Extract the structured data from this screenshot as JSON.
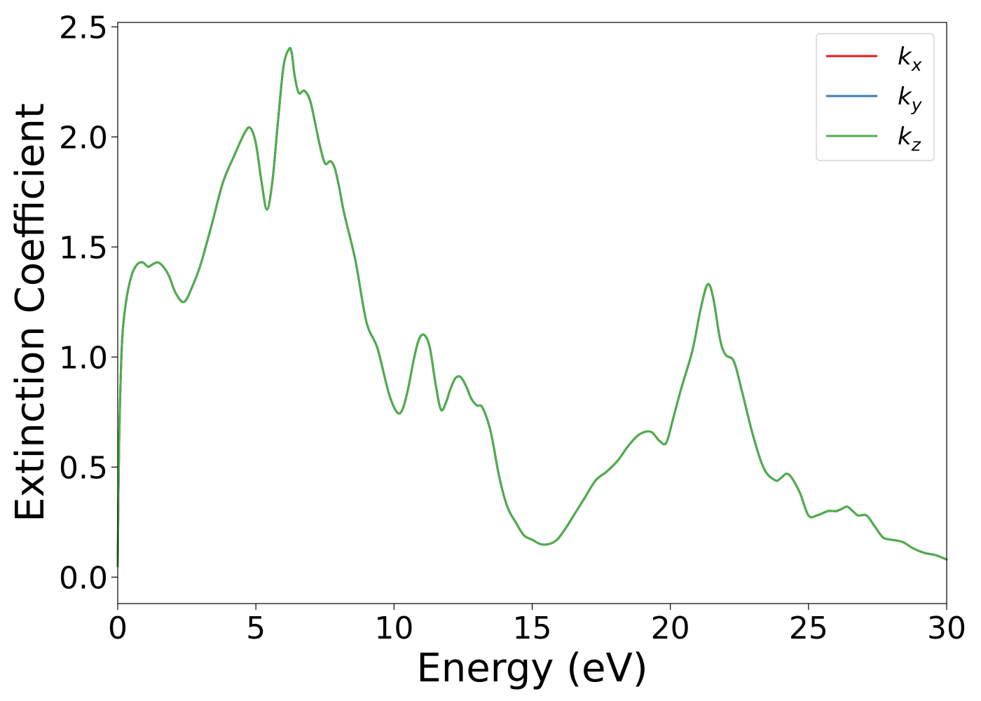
{
  "chart_data": {
    "type": "line",
    "xlabel": "Energy (eV)",
    "ylabel": "Extinction Coefficient",
    "xlim": [
      0,
      30
    ],
    "ylim": [
      -0.12,
      2.52
    ],
    "xticks": [
      0,
      5,
      10,
      15,
      20,
      25,
      30
    ],
    "yticks": [
      0.0,
      0.5,
      1.0,
      1.5,
      2.0,
      2.5
    ],
    "xtick_labels": [
      "0",
      "5",
      "10",
      "15",
      "20",
      "25",
      "30"
    ],
    "ytick_labels": [
      "0.0",
      "0.5",
      "1.0",
      "1.5",
      "2.0",
      "2.5"
    ],
    "grid": false,
    "legend_position": "top-right",
    "x": [
      0,
      0.05,
      0.15,
      0.3,
      0.5,
      0.7,
      0.9,
      1.1,
      1.25,
      1.45,
      1.65,
      1.85,
      2.1,
      2.4,
      2.7,
      3.0,
      3.4,
      3.8,
      4.2,
      4.6,
      4.8,
      5.0,
      5.2,
      5.4,
      5.6,
      5.8,
      6.0,
      6.2,
      6.3,
      6.4,
      6.55,
      6.75,
      6.95,
      7.1,
      7.3,
      7.5,
      7.7,
      7.85,
      8.0,
      8.2,
      8.6,
      9.0,
      9.4,
      9.8,
      10.1,
      10.3,
      10.5,
      10.7,
      10.9,
      11.1,
      11.3,
      11.5,
      11.7,
      11.9,
      12.0,
      12.2,
      12.4,
      12.6,
      12.8,
      13.0,
      13.2,
      13.5,
      13.8,
      14.1,
      14.4,
      14.7,
      15.0,
      15.3,
      15.6,
      15.9,
      16.2,
      16.5,
      16.9,
      17.3,
      17.7,
      18.1,
      18.5,
      18.9,
      19.3,
      19.6,
      19.85,
      20.1,
      20.4,
      20.8,
      21.1,
      21.35,
      21.55,
      21.8,
      22.0,
      22.3,
      22.6,
      23.0,
      23.4,
      23.8,
      24.0,
      24.2,
      24.4,
      24.7,
      25.0,
      25.3,
      25.7,
      26.0,
      26.2,
      26.4,
      26.6,
      26.8,
      27.1,
      27.4,
      27.7,
      28.0,
      28.4,
      28.8,
      29.2,
      29.6,
      30.0
    ],
    "series": [
      {
        "name": "k_x",
        "color": "#e41a1c",
        "values": [
          0.05,
          0.6,
          1.05,
          1.25,
          1.37,
          1.42,
          1.43,
          1.41,
          1.42,
          1.43,
          1.41,
          1.37,
          1.29,
          1.25,
          1.32,
          1.42,
          1.6,
          1.79,
          1.91,
          2.02,
          2.04,
          1.97,
          1.8,
          1.67,
          1.8,
          2.07,
          2.32,
          2.4,
          2.38,
          2.28,
          2.2,
          2.21,
          2.17,
          2.09,
          1.97,
          1.88,
          1.89,
          1.86,
          1.78,
          1.65,
          1.44,
          1.16,
          1.04,
          0.84,
          0.75,
          0.76,
          0.85,
          0.98,
          1.08,
          1.1,
          1.04,
          0.88,
          0.76,
          0.8,
          0.84,
          0.9,
          0.91,
          0.87,
          0.81,
          0.78,
          0.77,
          0.66,
          0.46,
          0.32,
          0.25,
          0.19,
          0.17,
          0.15,
          0.15,
          0.17,
          0.22,
          0.28,
          0.36,
          0.44,
          0.48,
          0.53,
          0.6,
          0.65,
          0.66,
          0.62,
          0.61,
          0.72,
          0.86,
          1.03,
          1.22,
          1.33,
          1.27,
          1.08,
          1.01,
          0.98,
          0.84,
          0.64,
          0.49,
          0.44,
          0.45,
          0.47,
          0.45,
          0.38,
          0.28,
          0.28,
          0.3,
          0.3,
          0.31,
          0.32,
          0.3,
          0.28,
          0.28,
          0.23,
          0.18,
          0.17,
          0.16,
          0.13,
          0.11,
          0.1,
          0.08
        ]
      },
      {
        "name": "k_y",
        "color": "#377eb8",
        "values": [
          0.05,
          0.6,
          1.05,
          1.25,
          1.37,
          1.42,
          1.43,
          1.41,
          1.42,
          1.43,
          1.41,
          1.37,
          1.29,
          1.25,
          1.32,
          1.42,
          1.6,
          1.79,
          1.91,
          2.02,
          2.04,
          1.97,
          1.8,
          1.67,
          1.8,
          2.07,
          2.32,
          2.4,
          2.38,
          2.28,
          2.2,
          2.21,
          2.17,
          2.09,
          1.97,
          1.88,
          1.89,
          1.86,
          1.78,
          1.65,
          1.44,
          1.16,
          1.04,
          0.84,
          0.75,
          0.76,
          0.85,
          0.98,
          1.08,
          1.1,
          1.04,
          0.88,
          0.76,
          0.8,
          0.84,
          0.9,
          0.91,
          0.87,
          0.81,
          0.78,
          0.77,
          0.66,
          0.46,
          0.32,
          0.25,
          0.19,
          0.17,
          0.15,
          0.15,
          0.17,
          0.22,
          0.28,
          0.36,
          0.44,
          0.48,
          0.53,
          0.6,
          0.65,
          0.66,
          0.62,
          0.61,
          0.72,
          0.86,
          1.03,
          1.22,
          1.33,
          1.27,
          1.08,
          1.01,
          0.98,
          0.84,
          0.64,
          0.49,
          0.44,
          0.45,
          0.47,
          0.45,
          0.38,
          0.28,
          0.28,
          0.3,
          0.3,
          0.31,
          0.32,
          0.3,
          0.28,
          0.28,
          0.23,
          0.18,
          0.17,
          0.16,
          0.13,
          0.11,
          0.1,
          0.08
        ]
      },
      {
        "name": "k_z",
        "color": "#4daf4a",
        "values": [
          0.05,
          0.6,
          1.05,
          1.25,
          1.37,
          1.42,
          1.43,
          1.41,
          1.42,
          1.43,
          1.41,
          1.37,
          1.29,
          1.25,
          1.32,
          1.42,
          1.6,
          1.79,
          1.91,
          2.02,
          2.04,
          1.97,
          1.8,
          1.67,
          1.8,
          2.07,
          2.32,
          2.4,
          2.38,
          2.28,
          2.2,
          2.21,
          2.17,
          2.09,
          1.97,
          1.88,
          1.89,
          1.86,
          1.78,
          1.65,
          1.44,
          1.16,
          1.04,
          0.84,
          0.75,
          0.76,
          0.85,
          0.98,
          1.08,
          1.1,
          1.04,
          0.88,
          0.76,
          0.8,
          0.84,
          0.9,
          0.91,
          0.87,
          0.81,
          0.78,
          0.77,
          0.66,
          0.46,
          0.32,
          0.25,
          0.19,
          0.17,
          0.15,
          0.15,
          0.17,
          0.22,
          0.28,
          0.36,
          0.44,
          0.48,
          0.53,
          0.6,
          0.65,
          0.66,
          0.62,
          0.61,
          0.72,
          0.86,
          1.03,
          1.22,
          1.33,
          1.27,
          1.08,
          1.01,
          0.98,
          0.84,
          0.64,
          0.49,
          0.44,
          0.45,
          0.47,
          0.45,
          0.38,
          0.28,
          0.28,
          0.3,
          0.3,
          0.31,
          0.32,
          0.3,
          0.28,
          0.28,
          0.23,
          0.18,
          0.17,
          0.16,
          0.13,
          0.11,
          0.1,
          0.08
        ]
      }
    ],
    "legend": [
      {
        "base": "k",
        "sub": "x",
        "color": "#e41a1c"
      },
      {
        "base": "k",
        "sub": "y",
        "color": "#377eb8"
      },
      {
        "base": "k",
        "sub": "z",
        "color": "#4daf4a"
      }
    ]
  }
}
